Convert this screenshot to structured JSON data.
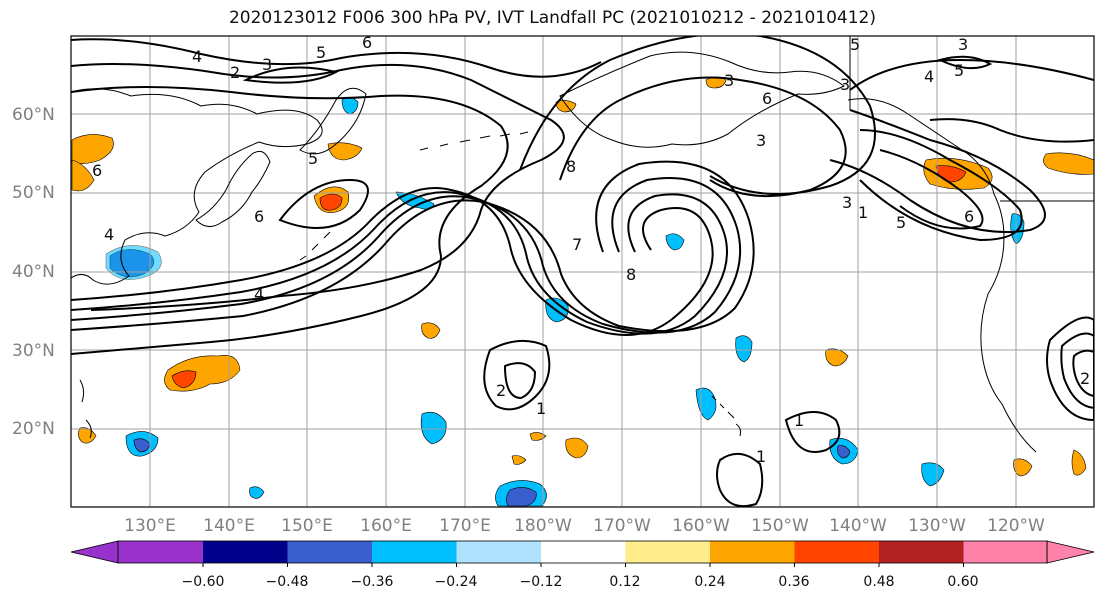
{
  "title": "2020123012 F006 300 hPa PV, IVT Landfall PC (2021010212 - 2021010412)",
  "lat_labels": [
    "60°N",
    "50°N",
    "40°N",
    "30°N",
    "20°N"
  ],
  "lon_labels": [
    "130°E",
    "140°E",
    "150°E",
    "160°E",
    "170°E",
    "180°W",
    "170°W",
    "160°W",
    "150°W",
    "140°W",
    "130°W",
    "120°W"
  ],
  "contour_labels": [
    "1",
    "2",
    "3",
    "4",
    "5",
    "6",
    "7",
    "8"
  ],
  "colorbar": {
    "ticks": [
      "−0.60",
      "−0.48",
      "−0.36",
      "−0.24",
      "−0.12",
      "0.12",
      "0.24",
      "0.36",
      "0.48",
      "0.60"
    ],
    "colors": [
      "#9932CC",
      "#00008B",
      "#3A5FCD",
      "#00BFFF",
      "#B0E2FF",
      "#FFFFFF",
      "#FFEC8B",
      "#FFA500",
      "#FF4500",
      "#B22222",
      "#FF82AB"
    ]
  }
}
